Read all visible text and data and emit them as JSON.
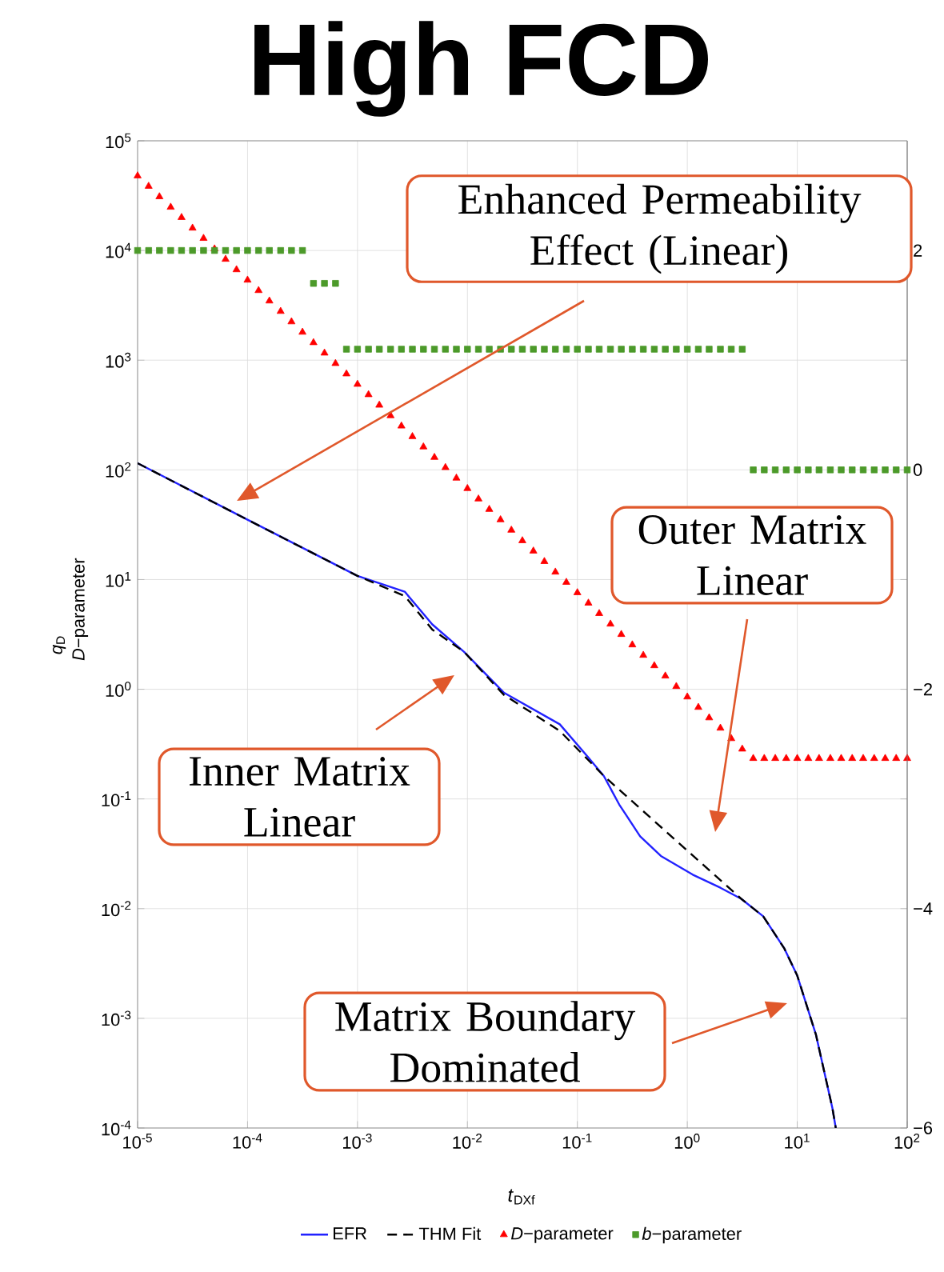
{
  "chart_data": {
    "type": "line",
    "title": "High FCD",
    "xlabel": "*t*$_{DXf}$",
    "ylabel": "*q*$_{D}$ *D*−parameter",
    "xlim": [
      1e-05,
      100
    ],
    "ylim": [
      0.0001,
      100000
    ],
    "y2lim": [
      -6,
      3
    ],
    "xticks": [
      {
        "value": 1e-05,
        "label": "10$^{-5}$"
      },
      {
        "value": 0.0001,
        "label": "10$^{-4}$"
      },
      {
        "value": 0.001,
        "label": "10$^{-3}$"
      },
      {
        "value": 0.01,
        "label": "10$^{-2}$"
      },
      {
        "value": 0.1,
        "label": "10$^{-1}$"
      },
      {
        "value": 1,
        "label": "10$^{0}$"
      },
      {
        "value": 10,
        "label": "10$^{1}$"
      },
      {
        "value": 100,
        "label": "10$^{2}$"
      }
    ],
    "yticks": [
      {
        "value": 0.0001,
        "label": "10$^{-4}$"
      },
      {
        "value": 0.001,
        "label": "10$^{-3}$"
      },
      {
        "value": 0.01,
        "label": "10$^{-2}$"
      },
      {
        "value": 0.1,
        "label": "10$^{-1}$"
      },
      {
        "value": 1,
        "label": "10$^{0}$"
      },
      {
        "value": 10,
        "label": "10$^{1}$"
      },
      {
        "value": 100,
        "label": "10$^{2}$"
      },
      {
        "value": 1000,
        "label": "10$^{3}$"
      },
      {
        "value": 10000,
        "label": "10$^{4}$"
      },
      {
        "value": 100000,
        "label": "10$^{5}$"
      }
    ],
    "y2ticks": [
      {
        "value": -6,
        "label": "−6"
      },
      {
        "value": -5,
        "label": null
      },
      {
        "value": -4,
        "label": "−4"
      },
      {
        "value": -3,
        "label": null
      },
      {
        "value": -2,
        "label": "−2"
      },
      {
        "value": -1,
        "label": null
      },
      0,
      {
        "value": 1,
        "label": null
      },
      2
    ],
    "log": "xy",
    "grid": true,
    "legend": "bottom",
    "series": [
      {
        "name": "EFR",
        "color": "#2222ff",
        "line_style": "solid",
        "marker": "none",
        "x": [
          1e-05,
          0.0001,
          0.001,
          0.00269,
          0.00479,
          0.00933,
          0.0214,
          0.0692,
          0.123,
          0.174,
          0.24,
          0.372,
          0.575,
          1.12,
          2.0,
          3.09,
          4.9,
          7.59,
          10,
          14.8,
          20.9,
          22.4
        ],
        "values": [
          115,
          35.1,
          10.8,
          7.76,
          3.9,
          2.19,
          0.933,
          0.479,
          0.245,
          0.162,
          0.0891,
          0.0457,
          0.0302,
          0.0204,
          0.0155,
          0.0123,
          0.00851,
          0.00437,
          0.00245,
          0.000708,
          0.000151,
          0.0001
        ]
      },
      {
        "name": "THM Fit",
        "color": "#000000",
        "line_style": "dashed",
        "marker": "none",
        "x": [
          1e-05,
          0.0001,
          0.001,
          0.00269,
          0.00479,
          0.00933,
          0.0214,
          0.0692,
          0.174,
          3.09,
          4.9,
          7.59,
          10,
          14.8,
          20.9,
          22.4
        ],
        "values": [
          115,
          35.1,
          10.8,
          7.08,
          3.5,
          2.19,
          0.891,
          0.417,
          0.162,
          0.0123,
          0.00851,
          0.00437,
          0.00245,
          0.000708,
          0.000151,
          0.0001
        ]
      },
      {
        "name": "*D*−parameter",
        "type": "scatter",
        "color": "#ff0000",
        "marker": "triangle",
        "x": [
          1e-05,
          1.26e-05,
          1.58e-05,
          2e-05,
          2.51e-05,
          3.16e-05,
          3.98e-05,
          5.01e-05,
          6.31e-05,
          7.94e-05,
          0.0001,
          0.000126,
          0.000158,
          0.0002,
          0.000251,
          0.000316,
          0.000398,
          0.000501,
          0.000631,
          0.000794,
          0.001,
          0.00126,
          0.00158,
          0.002,
          0.00251,
          0.00316,
          0.00398,
          0.00501,
          0.00631,
          0.00794,
          0.01,
          0.0126,
          0.0158,
          0.02,
          0.0251,
          0.0316,
          0.0398,
          0.0501,
          0.0631,
          0.0794,
          0.1,
          0.126,
          0.158,
          0.2,
          0.251,
          0.316,
          0.398,
          0.501,
          0.631,
          0.794,
          1,
          1.26,
          1.58,
          2,
          2.51,
          3.16,
          3.98,
          5.01,
          6.31,
          7.94,
          10,
          12.6,
          15.8,
          20,
          25.1,
          31.6,
          39.8,
          50.1,
          63.1,
          79.4,
          100
        ],
        "values": [
          47900,
          38500,
          30900,
          24800,
          20000,
          16000,
          12900,
          10350,
          8320,
          6680,
          5370,
          4315,
          3467,
          2786,
          2239,
          1799,
          1445,
          1161,
          933,
          750,
          603,
          485,
          389,
          312,
          251,
          201,
          162,
          130,
          105,
          84.1,
          67.6,
          54.3,
          43.6,
          35.1,
          28.2,
          22.6,
          18.2,
          14.6,
          11.7,
          9.44,
          7.59,
          6.1,
          4.9,
          3.93,
          3.16,
          2.54,
          2.04,
          1.64,
          1.32,
          1.06,
          0.851,
          0.684,
          0.549,
          0.442,
          0.355,
          0.285,
          0.234,
          0.234,
          0.234,
          0.234,
          0.234,
          0.234,
          0.234,
          0.234,
          0.234,
          0.234,
          0.234,
          0.234,
          0.234,
          0.234,
          0.234
        ]
      },
      {
        "name": "*b*−parameter",
        "type": "scatter",
        "color": "#4c9a2a",
        "marker": "square",
        "axis": "y2",
        "x": [
          1e-05,
          1.26e-05,
          1.58e-05,
          2e-05,
          2.51e-05,
          3.16e-05,
          3.98e-05,
          5.01e-05,
          6.31e-05,
          7.94e-05,
          0.0001,
          0.000126,
          0.000158,
          0.0002,
          0.000251,
          0.000316,
          0.000398,
          0.000501,
          0.000631,
          0.000794,
          0.001,
          0.00126,
          0.00158,
          0.002,
          0.00251,
          0.00316,
          0.00398,
          0.00501,
          0.00631,
          0.00794,
          0.01,
          0.0126,
          0.0158,
          0.02,
          0.0251,
          0.0316,
          0.0398,
          0.0501,
          0.0631,
          0.0794,
          0.1,
          0.126,
          0.158,
          0.2,
          0.251,
          0.316,
          0.398,
          0.501,
          0.631,
          0.794,
          1,
          1.26,
          1.58,
          2,
          2.51,
          3.16,
          3.98,
          5.01,
          6.31,
          7.94,
          10,
          12.6,
          15.8,
          20,
          25.1,
          31.6,
          39.8,
          50.1,
          63.1,
          79.4,
          100
        ],
        "values": [
          2,
          2,
          2,
          2,
          2,
          2,
          2,
          2,
          2,
          2,
          2,
          2,
          2,
          2,
          2,
          2,
          1.7,
          1.7,
          1.7,
          1.1,
          1.1,
          1.1,
          1.1,
          1.1,
          1.1,
          1.1,
          1.1,
          1.1,
          1.1,
          1.1,
          1.1,
          1.1,
          1.1,
          1.1,
          1.1,
          1.1,
          1.1,
          1.1,
          1.1,
          1.1,
          1.1,
          1.1,
          1.1,
          1.1,
          1.1,
          1.1,
          1.1,
          1.1,
          1.1,
          1.1,
          1.1,
          1.1,
          1.1,
          1.1,
          1.1,
          1.1,
          0,
          0,
          0,
          0,
          0,
          0,
          0,
          0,
          0,
          0,
          0,
          0,
          0,
          0,
          0
        ]
      }
    ],
    "annotations": [
      "Enhanced Permeability Effect (Linear)",
      "Outer Matrix Linear",
      "Inner Matrix Linear",
      "Matrix Boundary Dominated"
    ]
  }
}
